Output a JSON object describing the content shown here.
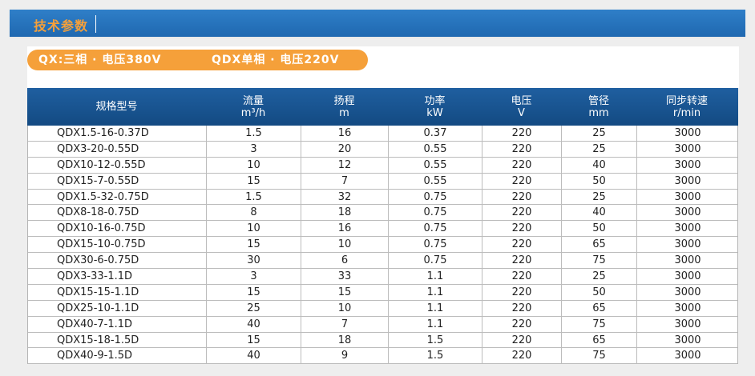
{
  "section": {
    "title": "技术参数"
  },
  "tag": {
    "qx": "QX:三相 · 电压380V",
    "qdx": "QDX单相 · 电压220V"
  },
  "table": {
    "headers": [
      {
        "line1": "规格型号",
        "line2": ""
      },
      {
        "line1": "流量",
        "line2": "m³/h"
      },
      {
        "line1": "扬程",
        "line2": "m"
      },
      {
        "line1": "功率",
        "line2": "kW"
      },
      {
        "line1": "电压",
        "line2": "V"
      },
      {
        "line1": "管径",
        "line2": "mm"
      },
      {
        "line1": "同步转速",
        "line2": "r/min"
      }
    ],
    "rows": [
      [
        "QDX1.5-16-0.37D",
        "1.5",
        "16",
        "0.37",
        "220",
        "25",
        "3000"
      ],
      [
        "QDX3-20-0.55D",
        "3",
        "20",
        "0.55",
        "220",
        "25",
        "3000"
      ],
      [
        "QDX10-12-0.55D",
        "10",
        "12",
        "0.55",
        "220",
        "40",
        "3000"
      ],
      [
        "QDX15-7-0.55D",
        "15",
        "7",
        "0.55",
        "220",
        "50",
        "3000"
      ],
      [
        "QDX1.5-32-0.75D",
        "1.5",
        "32",
        "0.75",
        "220",
        "25",
        "3000"
      ],
      [
        "QDX8-18-0.75D",
        "8",
        "18",
        "0.75",
        "220",
        "40",
        "3000"
      ],
      [
        "QDX10-16-0.75D",
        "10",
        "16",
        "0.75",
        "220",
        "50",
        "3000"
      ],
      [
        "QDX15-10-0.75D",
        "15",
        "10",
        "0.75",
        "220",
        "65",
        "3000"
      ],
      [
        "QDX30-6-0.75D",
        "30",
        "6",
        "0.75",
        "220",
        "75",
        "3000"
      ],
      [
        "QDX3-33-1.1D",
        "3",
        "33",
        "1.1",
        "220",
        "25",
        "3000"
      ],
      [
        "QDX15-15-1.1D",
        "15",
        "15",
        "1.1",
        "220",
        "50",
        "3000"
      ],
      [
        "QDX25-10-1.1D",
        "25",
        "10",
        "1.1",
        "220",
        "65",
        "3000"
      ],
      [
        "QDX40-7-1.1D",
        "40",
        "7",
        "1.1",
        "220",
        "75",
        "3000"
      ],
      [
        "QDX15-18-1.5D",
        "15",
        "18",
        "1.5",
        "220",
        "65",
        "3000"
      ],
      [
        "QDX40-9-1.5D",
        "40",
        "9",
        "1.5",
        "220",
        "75",
        "3000"
      ]
    ]
  }
}
